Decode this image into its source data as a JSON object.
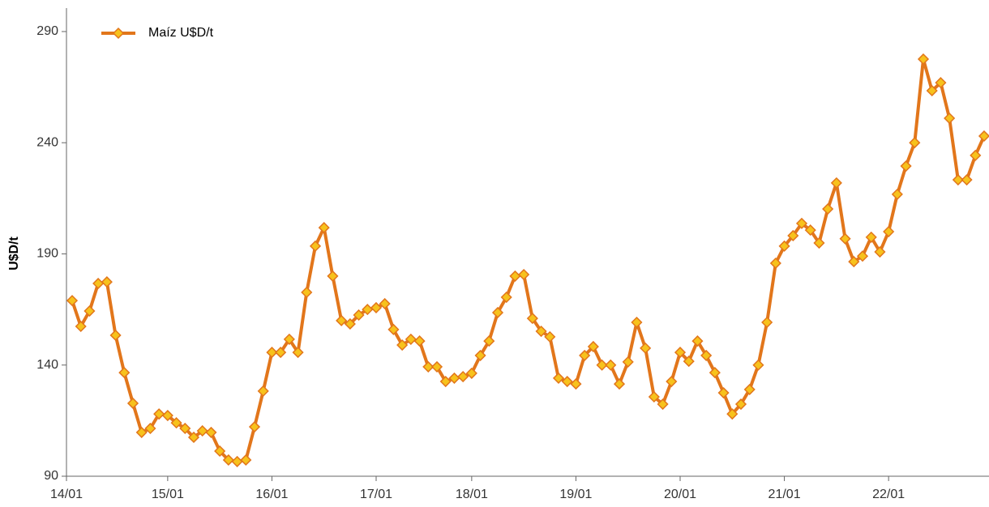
{
  "chart_data": {
    "type": "line",
    "y_label": "U$D/t",
    "categories": [
      "14/01",
      null,
      null,
      null,
      null,
      null,
      null,
      null,
      null,
      null,
      null,
      "15/01",
      null,
      null,
      null,
      null,
      null,
      null,
      null,
      null,
      null,
      null,
      null,
      "16/01",
      null,
      null,
      null,
      null,
      null,
      null,
      null,
      null,
      null,
      null,
      null,
      "17/01",
      null,
      null,
      null,
      null,
      null,
      null,
      null,
      null,
      null,
      null,
      "18/01",
      null,
      null,
      null,
      null,
      null,
      null,
      null,
      null,
      null,
      null,
      null,
      "19/01",
      null,
      null,
      null,
      null,
      null,
      null,
      null,
      null,
      null,
      null,
      null,
      "20/01",
      null,
      null,
      null,
      null,
      null,
      null,
      null,
      null,
      null,
      null,
      null,
      "21/01",
      null,
      null,
      null,
      null,
      null,
      null,
      null,
      null,
      null,
      null,
      null,
      "22/01",
      null,
      null,
      null,
      null,
      null,
      null,
      null,
      null,
      null,
      null,
      null
    ],
    "series": [
      {
        "name": "Maíz U$D/t",
        "color": "#e2761b",
        "marker_color": "#f7c21c",
        "values": [
          169,
          157.4,
          164.3,
          176.7,
          177.4,
          153.4,
          136.6,
          122.8,
          109.7,
          111.5,
          118,
          117.3,
          114,
          111.5,
          107.5,
          110.4,
          109.7,
          101.3,
          97.3,
          96.6,
          97.3,
          112.2,
          128.3,
          145.7,
          145.7,
          151.6,
          145.7,
          172.7,
          193.5,
          201.8,
          180,
          160,
          158.5,
          162.5,
          165,
          165.8,
          167.6,
          156,
          149,
          151.6,
          150.8,
          139.2,
          139.2,
          132.6,
          134.1,
          134.8,
          136.3,
          144.3,
          150.8,
          163.6,
          170.5,
          180,
          180.7,
          161,
          155.2,
          152.7,
          134.1,
          132.6,
          131.5,
          144.3,
          148.3,
          140,
          140,
          131.5,
          141.4,
          159.2,
          147.6,
          125.7,
          122.4,
          132.6,
          145.7,
          141.7,
          150.8,
          144.3,
          136.6,
          127.5,
          118,
          122.4,
          129,
          140,
          159.2,
          185.8,
          193.5,
          198.2,
          203.7,
          200.7,
          194.9,
          210.2,
          221.9,
          196.8,
          186.5,
          189,
          197.5,
          190.9,
          200,
          216.8,
          229.5,
          240,
          277.6,
          263.4,
          267,
          251,
          223.3,
          223.3,
          234.3,
          243
        ]
      }
    ],
    "ylim": [
      90,
      300
    ],
    "yticks": [
      90,
      140,
      190,
      240,
      290
    ],
    "legend": "top-left",
    "grid": false
  }
}
